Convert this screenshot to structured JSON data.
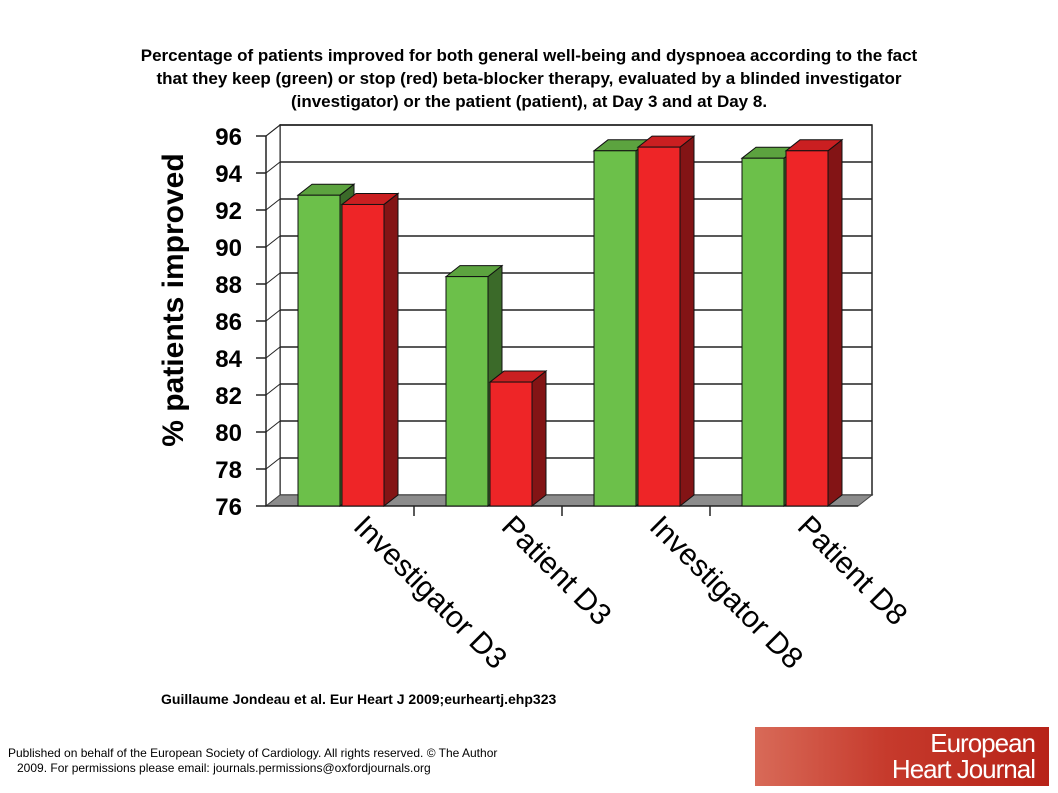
{
  "title_lines": [
    "Percentage of patients improved for both general well-being and dyspnoea according to the fact",
    "that they keep (green) or stop (red) beta-blocker therapy, evaluated by a blinded investigator",
    "(investigator) or the patient (patient), at Day 3 and at Day 8."
  ],
  "chart_data": {
    "type": "bar",
    "categories": [
      "Investigator D3",
      "Patient D3",
      "Investigator D8",
      "Patient D8"
    ],
    "series": [
      {
        "values": [
          92.8,
          88.4,
          95.2,
          94.8
        ],
        "color": "#6cc04a"
      },
      {
        "values": [
          92.3,
          82.7,
          95.4,
          95.2
        ],
        "color": "#ee2527"
      }
    ],
    "ylabel": "% patients improved",
    "ylim": [
      76,
      96
    ],
    "yticks": [
      76,
      78,
      80,
      82,
      84,
      86,
      88,
      90,
      92,
      94,
      96
    ],
    "grid": true,
    "style": "3d"
  },
  "citation": "Guillaume Jondeau et al. Eur Heart J 2009;eurheartj.ehp323",
  "footer_lines": [
    "Published on behalf of the European Society of Cardiology. All rights reserved. © The Author",
    "2009. For permissions please email: journals.permissions@oxfordjournals.org"
  ],
  "logo_lines": [
    "European",
    "Heart Journal"
  ]
}
